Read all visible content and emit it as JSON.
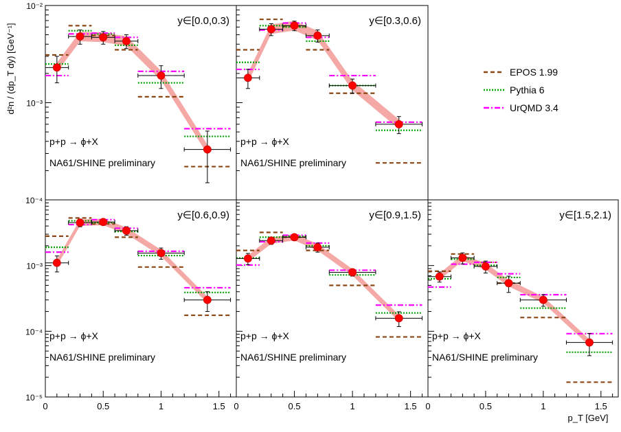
{
  "figure": {
    "ylabel": "d²n / (dp_T dy)  [GeV⁻¹]",
    "xlabel": "p_T [GeV]",
    "reaction_label": "p+p → ϕ+X",
    "experiment_label": "NA61/SHINE preliminary"
  },
  "legend": {
    "position": "right of top row",
    "entries": [
      {
        "name": "EPOS 1.99",
        "color": "#8b4513",
        "style": "dashed"
      },
      {
        "name": "Pythia 6",
        "color": "#00a000",
        "style": "dotted"
      },
      {
        "name": "UrQMD 3.4",
        "color": "#ff00ff",
        "style": "dash-dot"
      }
    ]
  },
  "colors": {
    "data_marker": "#ff0000",
    "systematic_band": "#f4a09c",
    "epos": "#8b4513",
    "pythia": "#00a000",
    "urqmd": "#ff00ff"
  },
  "x_tick_labels": [
    "0",
    "0.5",
    "1",
    "1.5"
  ],
  "chart_data": [
    {
      "type": "scatter",
      "title": "y∈[0.0,0.3)",
      "xlim": [
        0,
        1.65
      ],
      "ylim": [
        0.0001,
        0.01
      ],
      "yscale": "log",
      "y_tick_labels": [
        "10⁻²",
        "10⁻³",
        "10⁻⁴"
      ],
      "y_tick_values": [
        0.01,
        0.001,
        0.0001
      ],
      "bins": [
        [
          0,
          0.2
        ],
        [
          0.2,
          0.4
        ],
        [
          0.4,
          0.6
        ],
        [
          0.6,
          0.8
        ],
        [
          0.8,
          1.2
        ],
        [
          1.2,
          1.6
        ]
      ],
      "data": {
        "x": [
          0.1,
          0.3,
          0.5,
          0.7,
          1.0,
          1.4
        ],
        "y": [
          0.0023,
          0.0048,
          0.0047,
          0.0043,
          0.0019,
          0.00033
        ],
        "err_lo": [
          0.0007,
          0.0008,
          0.0007,
          0.0007,
          0.0005,
          0.00018
        ],
        "err_hi": [
          0.0007,
          0.0008,
          0.0007,
          0.0007,
          0.0005,
          0.00018
        ]
      },
      "models": {
        "epos": [
          0.0031,
          0.0062,
          0.0049,
          0.0035,
          0.00115,
          0.00022
        ],
        "pythia": [
          0.0025,
          0.0055,
          0.0051,
          0.0039,
          0.0016,
          0.00045
        ],
        "urqmd": [
          0.0019,
          0.0051,
          0.0052,
          0.0047,
          0.0021,
          0.00054
        ]
      }
    },
    {
      "type": "scatter",
      "title": "y∈[0.3,0.6)",
      "xlim": [
        0,
        1.65
      ],
      "ylim": [
        0.0001,
        0.01
      ],
      "yscale": "log",
      "y_tick_labels": [],
      "y_tick_values": [
        0.01,
        0.001,
        0.0001
      ],
      "bins": [
        [
          0,
          0.2
        ],
        [
          0.2,
          0.4
        ],
        [
          0.4,
          0.6
        ],
        [
          0.6,
          0.8
        ],
        [
          0.8,
          1.2
        ],
        [
          1.2,
          1.6
        ]
      ],
      "data": {
        "x": [
          0.1,
          0.3,
          0.5,
          0.7,
          1.0,
          1.4
        ],
        "y": [
          0.0018,
          0.0057,
          0.0062,
          0.0049,
          0.0015,
          0.0006
        ],
        "err_lo": [
          0.0004,
          0.0008,
          0.0007,
          0.0007,
          0.00025,
          0.00012
        ],
        "err_hi": [
          0.0004,
          0.0008,
          0.0007,
          0.0007,
          0.00025,
          0.00012
        ]
      },
      "models": {
        "epos": [
          0.0035,
          0.0072,
          0.0061,
          0.0035,
          0.00125,
          0.00024
        ],
        "pythia": [
          0.0026,
          0.0062,
          0.006,
          0.0043,
          0.0015,
          0.00052
        ],
        "urqmd": [
          0.0022,
          0.0056,
          0.0066,
          0.0047,
          0.0019,
          0.00063
        ]
      }
    },
    {
      "type": "scatter",
      "title": "y∈[0.6,0.9)",
      "xlim": [
        0,
        1.65
      ],
      "ylim": [
        1e-05,
        0.01
      ],
      "yscale": "log",
      "y_tick_labels": [
        "10⁻³",
        "10⁻⁴",
        "10⁻⁵"
      ],
      "y_tick_values": [
        0.001,
        0.0001,
        1e-05
      ],
      "bins": [
        [
          0,
          0.2
        ],
        [
          0.2,
          0.4
        ],
        [
          0.4,
          0.6
        ],
        [
          0.6,
          0.8
        ],
        [
          0.8,
          1.2
        ],
        [
          1.2,
          1.6
        ]
      ],
      "data": {
        "x": [
          0.1,
          0.3,
          0.5,
          0.7,
          1.0,
          1.4
        ],
        "y": [
          0.0011,
          0.0045,
          0.0046,
          0.0034,
          0.00155,
          0.0003
        ],
        "err_lo": [
          0.0003,
          0.0006,
          0.0005,
          0.0005,
          0.0003,
          0.0001
        ],
        "err_hi": [
          0.0003,
          0.0006,
          0.0005,
          0.0005,
          0.0003,
          0.0001
        ]
      },
      "models": {
        "epos": [
          0.0028,
          0.0053,
          0.0043,
          0.0027,
          0.00095,
          0.000175
        ],
        "pythia": [
          0.0019,
          0.0048,
          0.0045,
          0.0033,
          0.00142,
          0.00039
        ],
        "urqmd": [
          0.0016,
          0.0042,
          0.005,
          0.0037,
          0.00165,
          0.00046
        ]
      }
    },
    {
      "type": "scatter",
      "title": "y∈[0.9,1.5)",
      "xlim": [
        0,
        1.65
      ],
      "ylim": [
        1e-05,
        0.01
      ],
      "yscale": "log",
      "y_tick_labels": [],
      "y_tick_values": [
        0.001,
        0.0001,
        1e-05
      ],
      "bins": [
        [
          0,
          0.2
        ],
        [
          0.2,
          0.4
        ],
        [
          0.4,
          0.6
        ],
        [
          0.6,
          0.8
        ],
        [
          0.8,
          1.2
        ],
        [
          1.2,
          1.6
        ]
      ],
      "data": {
        "x": [
          0.1,
          0.3,
          0.5,
          0.7,
          1.0,
          1.4
        ],
        "y": [
          0.00128,
          0.0024,
          0.0027,
          0.0019,
          0.00079,
          0.000158
        ],
        "err_lo": [
          0.00025,
          0.0003,
          0.0003,
          0.0003,
          0.0001,
          4e-05
        ],
        "err_hi": [
          0.00025,
          0.0003,
          0.0003,
          0.0003,
          0.0001,
          4e-05
        ]
      },
      "models": {
        "epos": [
          0.0017,
          0.0032,
          0.0027,
          0.0017,
          0.0005,
          8.2e-05
        ],
        "pythia": [
          0.0013,
          0.0027,
          0.0028,
          0.002,
          0.00072,
          0.00019
        ],
        "urqmd": [
          0.00102,
          0.0023,
          0.0029,
          0.0022,
          0.00085,
          0.00025
        ]
      }
    },
    {
      "type": "scatter",
      "title": "y∈[1.5,2.1)",
      "xlim": [
        0,
        1.65
      ],
      "ylim": [
        1e-05,
        0.01
      ],
      "yscale": "log",
      "y_tick_labels": [],
      "y_tick_values": [
        0.001,
        0.0001,
        1e-05
      ],
      "bins": [
        [
          0,
          0.2
        ],
        [
          0.2,
          0.4
        ],
        [
          0.4,
          0.6
        ],
        [
          0.6,
          0.8
        ],
        [
          0.8,
          1.2
        ],
        [
          1.2,
          1.6
        ]
      ],
      "data": {
        "x": [
          0.1,
          0.3,
          0.5,
          0.7,
          1.0,
          1.4
        ],
        "y": [
          0.00068,
          0.00131,
          0.00097,
          0.00054,
          0.0003,
          6.75e-05
        ],
        "err_lo": [
          0.00012,
          0.00025,
          0.0002,
          0.00015,
          6e-05,
          2.5e-05
        ],
        "err_hi": [
          0.00012,
          0.00025,
          0.0002,
          0.00015,
          6e-05,
          2.5e-05
        ]
      },
      "models": {
        "epos": [
          0.00082,
          0.0015,
          0.00112,
          0.00054,
          0.000162,
          1.68e-05
        ],
        "pythia": [
          0.00063,
          0.00125,
          0.00101,
          0.00066,
          0.000225,
          4.8e-05
        ],
        "urqmd": [
          0.00047,
          0.00105,
          0.00112,
          0.00075,
          0.00036,
          9.2e-05
        ]
      }
    }
  ]
}
